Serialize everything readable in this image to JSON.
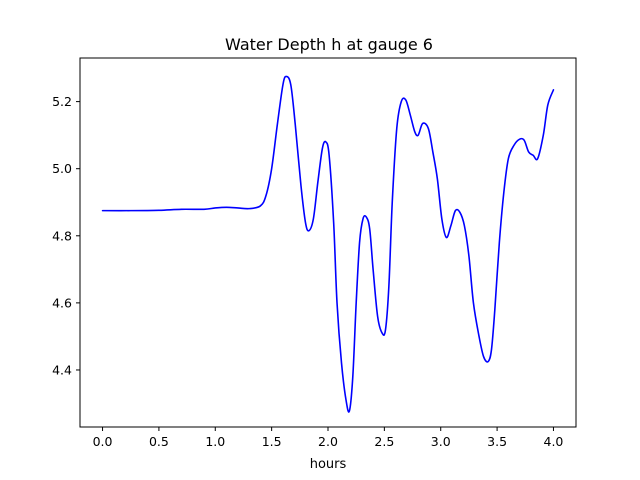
{
  "chart_data": {
    "type": "line",
    "title": "Water Depth h at gauge 6",
    "xlabel": "hours",
    "ylabel": "",
    "xlim": [
      -0.2,
      4.2
    ],
    "ylim": [
      4.23,
      5.33
    ],
    "xticks": [
      0.0,
      0.5,
      1.0,
      1.5,
      2.0,
      2.5,
      3.0,
      3.5,
      4.0
    ],
    "xtick_labels": [
      "0.0",
      "0.5",
      "1.0",
      "1.5",
      "2.0",
      "2.5",
      "3.0",
      "3.5",
      "4.0"
    ],
    "yticks": [
      4.4,
      4.6,
      4.8,
      5.0,
      5.2
    ],
    "ytick_labels": [
      "4.4",
      "4.6",
      "4.8",
      "5.0",
      "5.2"
    ],
    "grid": false,
    "color": "#0000ff",
    "series": [
      {
        "x": [
          0.0,
          0.25,
          0.5,
          0.7,
          0.9,
          1.0,
          1.1,
          1.2,
          1.3,
          1.4,
          1.45,
          1.5,
          1.55,
          1.6,
          1.63,
          1.67,
          1.71,
          1.76,
          1.8,
          1.83,
          1.87,
          1.91,
          1.95,
          1.98,
          2.01,
          2.05,
          2.08,
          2.12,
          2.16,
          2.19,
          2.22,
          2.25,
          2.28,
          2.31,
          2.34,
          2.37,
          2.4,
          2.44,
          2.48,
          2.51,
          2.54,
          2.57,
          2.61,
          2.65,
          2.69,
          2.73,
          2.77,
          2.8,
          2.84,
          2.89,
          2.93,
          2.97,
          3.01,
          3.05,
          3.09,
          3.13,
          3.17,
          3.21,
          3.25,
          3.29,
          3.34,
          3.38,
          3.42,
          3.45,
          3.48,
          3.52,
          3.56,
          3.6,
          3.65,
          3.7,
          3.74,
          3.78,
          3.82,
          3.86,
          3.91,
          3.95,
          4.0
        ],
        "y": [
          4.875,
          4.875,
          4.876,
          4.879,
          4.879,
          4.883,
          4.885,
          4.883,
          4.881,
          4.889,
          4.92,
          5.0,
          5.13,
          5.25,
          5.275,
          5.25,
          5.13,
          4.95,
          4.84,
          4.815,
          4.85,
          4.96,
          5.06,
          5.08,
          5.04,
          4.84,
          4.6,
          4.42,
          4.31,
          4.278,
          4.38,
          4.6,
          4.78,
          4.85,
          4.856,
          4.82,
          4.7,
          4.56,
          4.51,
          4.52,
          4.65,
          4.9,
          5.12,
          5.2,
          5.205,
          5.16,
          5.11,
          5.1,
          5.135,
          5.12,
          5.05,
          4.97,
          4.85,
          4.795,
          4.83,
          4.875,
          4.87,
          4.83,
          4.74,
          4.6,
          4.5,
          4.44,
          4.425,
          4.46,
          4.58,
          4.78,
          4.93,
          5.03,
          5.07,
          5.088,
          5.085,
          5.05,
          5.04,
          5.03,
          5.1,
          5.19,
          5.235
        ]
      }
    ]
  }
}
